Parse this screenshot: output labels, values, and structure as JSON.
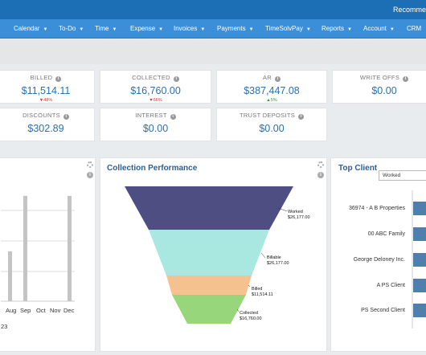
{
  "header": {
    "recommend_text": "Recomme"
  },
  "nav": [
    {
      "label": "Calendar"
    },
    {
      "label": "To-Do"
    },
    {
      "label": "Time"
    },
    {
      "label": "Expense"
    },
    {
      "label": "Invoices"
    },
    {
      "label": "Payments"
    },
    {
      "label": "TimeSolvPay"
    },
    {
      "label": "Reports"
    },
    {
      "label": "Account"
    },
    {
      "label": "CRM"
    }
  ],
  "kpis": {
    "billed": {
      "label": "BILLED",
      "value": "$11,514.11",
      "delta": "48%",
      "trend": "down"
    },
    "collected": {
      "label": "COLLECTED",
      "value": "$16,760.00",
      "delta": "66%",
      "trend": "down"
    },
    "ar": {
      "label": "AR",
      "value": "$387,447.08",
      "delta": "5%",
      "trend": "up"
    },
    "write_offs": {
      "label": "WRITE OFFS",
      "value": "$0.00"
    },
    "discounts": {
      "label": "DISCOUNTS",
      "value": "$302.89"
    },
    "interest": {
      "label": "INTEREST",
      "value": "$0.00"
    },
    "trust_deposits": {
      "label": "TRUST DEPOSITS",
      "value": "$0.00"
    }
  },
  "left_chart": {
    "months": [
      "Aug",
      "Sep",
      "Oct",
      "Nov",
      "Dec"
    ],
    "year_fragment": "23",
    "bar_levels": [
      0.45,
      0.95,
      0,
      0,
      0.95
    ]
  },
  "collection_performance": {
    "title": "Collection Performance",
    "stages": [
      {
        "name": "Worked",
        "value": "$26,177.00",
        "color": "#4e4e82"
      },
      {
        "name": "Billable",
        "value": "$26,177.00",
        "color": "#a8e8e0"
      },
      {
        "name": "Billed",
        "value": "$11,514.11",
        "color": "#f5c28f"
      },
      {
        "name": "Collected",
        "value": "$16,760.00",
        "color": "#97d67a"
      }
    ]
  },
  "top_client": {
    "title": "Top Client",
    "filter_value": "Worked",
    "clients": [
      "36974 - A B Properties",
      "00 ABC Family",
      "George Deloney Inc.",
      "A PS Client",
      "PS Second Client"
    ]
  }
}
